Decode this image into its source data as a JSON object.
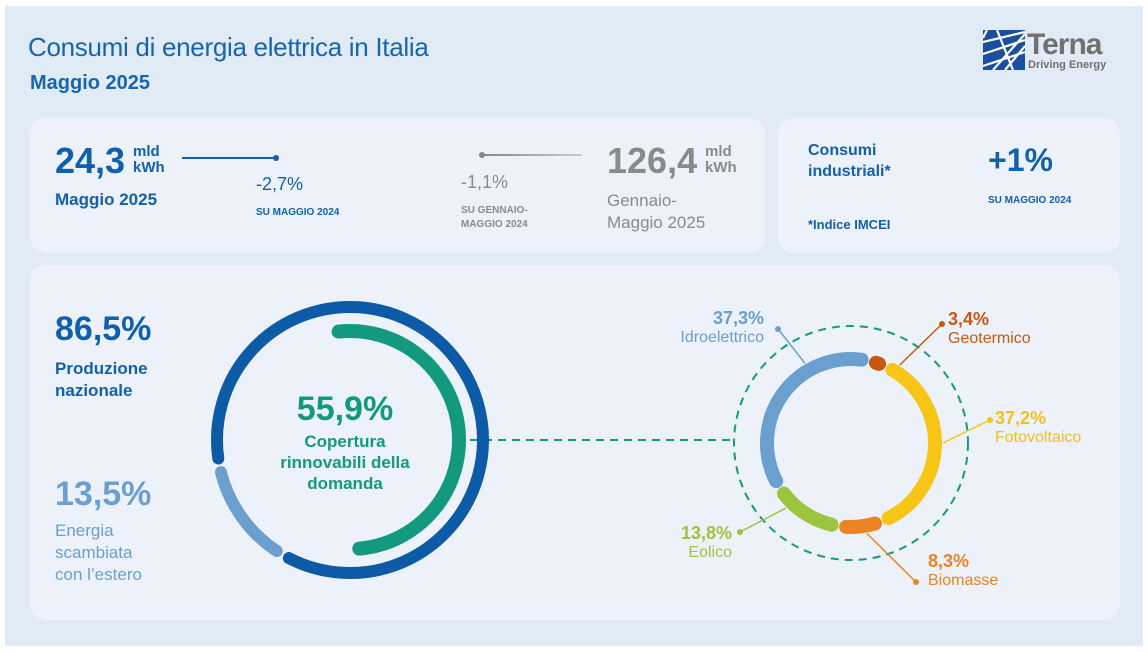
{
  "header": {
    "title": "Consumi di energia elettrica in Italia",
    "subtitle": "Maggio 2025"
  },
  "logo": {
    "name": "Terna",
    "tagline": "Driving Energy",
    "icon": "terna-grid-logo-icon",
    "color": "#1a4fa0"
  },
  "monthly": {
    "value": "24,3",
    "unit1": "mld",
    "unit2": "kWh",
    "period": "Maggio 2025",
    "change": "-2,7%",
    "change_ref": "SU MAGGIO 2024"
  },
  "ytd": {
    "value": "126,4",
    "unit1": "mld",
    "unit2": "kWh",
    "period1": "Gennaio-",
    "period2": "Maggio 2025",
    "change": "-1,1%",
    "change_ref1": "SU GENNAIO-",
    "change_ref2": "MAGGIO 2024"
  },
  "industrial": {
    "label1": "Consumi",
    "label2": "industriali*",
    "value": "+1%",
    "change_ref": "SU MAGGIO 2024",
    "note": "*Indice IMCEI"
  },
  "chart_data": [
    {
      "type": "pie",
      "variant": "donut",
      "title": "",
      "series": [
        {
          "name": "Produzione nazionale",
          "value": 86.5,
          "label": "86,5%",
          "label_lines": [
            "Produzione",
            "nazionale"
          ],
          "color": "#0d5aa7"
        },
        {
          "name": "Energia scambiata con l'estero",
          "value": 13.5,
          "label": "13,5%",
          "label_lines": [
            "Energia",
            "scambiata",
            "con l’estero"
          ],
          "color": "#6a9fd0"
        }
      ],
      "inner": {
        "value": 55.9,
        "label": "55,9%",
        "caption_lines": [
          "Copertura",
          "rinnovabili della",
          "domanda"
        ],
        "color": "#139a7e"
      }
    },
    {
      "type": "pie",
      "variant": "donut",
      "title": "",
      "series": [
        {
          "name": "Idroelettrico",
          "value": 37.3,
          "label": "37,3%",
          "color": "#6a9fd0"
        },
        {
          "name": "Geotermico",
          "value": 3.4,
          "label": "3,4%",
          "color": "#c8580f"
        },
        {
          "name": "Fotovoltaico",
          "value": 37.2,
          "label": "37,2%",
          "color": "#f6c516"
        },
        {
          "name": "Biomasse",
          "value": 8.3,
          "label": "8,3%",
          "color": "#ea8424"
        },
        {
          "name": "Eolico",
          "value": 13.8,
          "label": "13,8%",
          "color": "#9cc43e"
        }
      ]
    }
  ]
}
